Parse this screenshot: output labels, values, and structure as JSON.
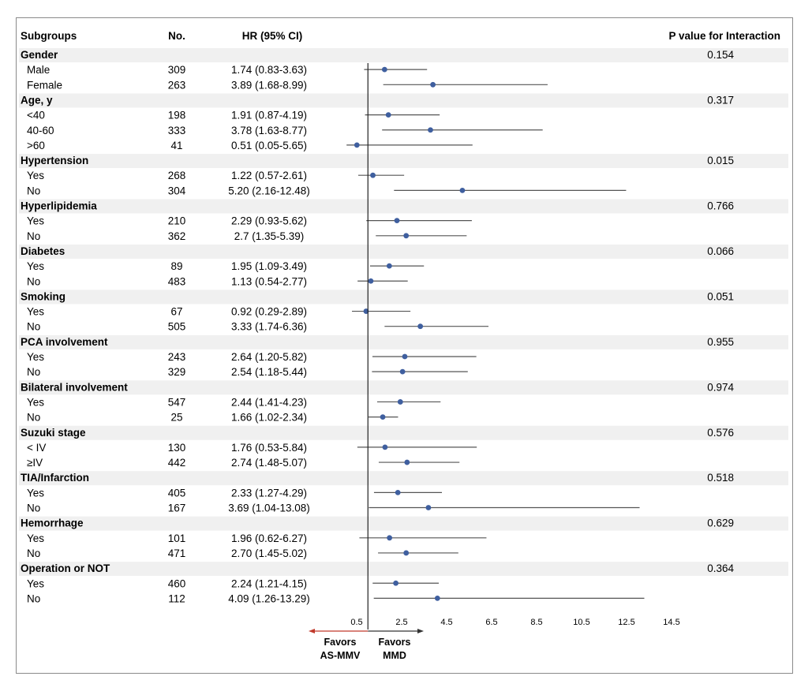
{
  "headers": {
    "subgroups": "Subgroups",
    "no": "No.",
    "hr": "HR (95% CI)",
    "p": "P value for Interaction"
  },
  "chart_data": {
    "type": "forest",
    "x_ticks": [
      0.5,
      2.5,
      4.5,
      6.5,
      8.5,
      10.5,
      12.5,
      14.5
    ],
    "x_tick_labels": [
      "0.5",
      "2.5",
      "4.5",
      "6.5",
      "8.5",
      "10.5",
      "12.5",
      "14.5"
    ],
    "xlim": [
      0.5,
      14.5
    ],
    "reference_line": 1,
    "favors_left": "Favors\nAS-MMV",
    "favors_left_lines": [
      "Favors",
      "AS-MMV"
    ],
    "favors_right_lines": [
      "Favors",
      "MMD"
    ],
    "colors": {
      "point": "#3f5f9f",
      "ci_line": "#555555",
      "band": "#f0f0f0",
      "arrow_left": "#c0392b",
      "arrow_right": "#333333"
    },
    "groups": [
      {
        "name": "Gender",
        "p": "0.154",
        "rows": [
          {
            "label": "Male",
            "n": "309",
            "hr_text": "1.74 (0.83-3.63)",
            "hr": 1.74,
            "lo": 0.83,
            "hi": 3.63
          },
          {
            "label": "Female",
            "n": "263",
            "hr_text": "3.89 (1.68-8.99)",
            "hr": 3.89,
            "lo": 1.68,
            "hi": 8.99
          }
        ]
      },
      {
        "name": "Age, y",
        "p": "0.317",
        "rows": [
          {
            "label": "<40",
            "n": "198",
            "hr_text": "1.91 (0.87-4.19)",
            "hr": 1.91,
            "lo": 0.87,
            "hi": 4.19
          },
          {
            "label": "40-60",
            "n": "333",
            "hr_text": "3.78 (1.63-8.77)",
            "hr": 3.78,
            "lo": 1.63,
            "hi": 8.77
          },
          {
            "label": ">60",
            "n": "41",
            "hr_text": "0.51 (0.05-5.65)",
            "hr": 0.51,
            "lo": 0.05,
            "hi": 5.65
          }
        ]
      },
      {
        "name": "Hypertension",
        "p": "0.015",
        "rows": [
          {
            "label": "Yes",
            "n": "268",
            "hr_text": "1.22 (0.57-2.61)",
            "hr": 1.22,
            "lo": 0.57,
            "hi": 2.61
          },
          {
            "label": "No",
            "n": "304",
            "hr_text": "5.20 (2.16-12.48)",
            "hr": 5.2,
            "lo": 2.16,
            "hi": 12.48
          }
        ]
      },
      {
        "name": "Hyperlipidemia",
        "p": "0.766",
        "rows": [
          {
            "label": "Yes",
            "n": "210",
            "hr_text": "2.29 (0.93-5.62)",
            "hr": 2.29,
            "lo": 0.93,
            "hi": 5.62
          },
          {
            "label": "No",
            "n": "362",
            "hr_text": "2.7 (1.35-5.39)",
            "hr": 2.7,
            "lo": 1.35,
            "hi": 5.39
          }
        ]
      },
      {
        "name": "Diabetes",
        "p": "0.066",
        "rows": [
          {
            "label": "Yes",
            "n": "89",
            "hr_text": "1.95 (1.09-3.49)",
            "hr": 1.95,
            "lo": 1.09,
            "hi": 3.49
          },
          {
            "label": "No",
            "n": "483",
            "hr_text": "1.13 (0.54-2.77)",
            "hr": 1.13,
            "lo": 0.54,
            "hi": 2.77
          }
        ]
      },
      {
        "name": "Smoking",
        "p": "0.051",
        "rows": [
          {
            "label": "Yes",
            "n": "67",
            "hr_text": "0.92 (0.29-2.89)",
            "hr": 0.92,
            "lo": 0.29,
            "hi": 2.89
          },
          {
            "label": "No",
            "n": "505",
            "hr_text": "3.33 (1.74-6.36)",
            "hr": 3.33,
            "lo": 1.74,
            "hi": 6.36
          }
        ]
      },
      {
        "name": "PCA involvement",
        "p": "0.955",
        "rows": [
          {
            "label": "Yes",
            "n": "243",
            "hr_text": "2.64 (1.20-5.82)",
            "hr": 2.64,
            "lo": 1.2,
            "hi": 5.82
          },
          {
            "label": "No",
            "n": "329",
            "hr_text": "2.54 (1.18-5.44)",
            "hr": 2.54,
            "lo": 1.18,
            "hi": 5.44
          }
        ]
      },
      {
        "name": "Bilateral involvement",
        "p": "0.974",
        "rows": [
          {
            "label": "Yes",
            "n": "547",
            "hr_text": "2.44 (1.41-4.23)",
            "hr": 2.44,
            "lo": 1.41,
            "hi": 4.23
          },
          {
            "label": "No",
            "n": "25",
            "hr_text": "1.66 (1.02-2.34)",
            "hr": 1.66,
            "lo": 1.02,
            "hi": 2.34
          }
        ]
      },
      {
        "name": "Suzuki stage",
        "p": "0.576",
        "rows": [
          {
            "label": "< IV",
            "n": "130",
            "hr_text": "1.76 (0.53-5.84)",
            "hr": 1.76,
            "lo": 0.53,
            "hi": 5.84
          },
          {
            "label": "≥IV",
            "n": "442",
            "hr_text": "2.74 (1.48-5.07)",
            "hr": 2.74,
            "lo": 1.48,
            "hi": 5.07
          }
        ]
      },
      {
        "name": "TIA/Infarction",
        "p": "0.518",
        "rows": [
          {
            "label": "Yes",
            "n": "405",
            "hr_text": "2.33 (1.27-4.29)",
            "hr": 2.33,
            "lo": 1.27,
            "hi": 4.29
          },
          {
            "label": "No",
            "n": "167",
            "hr_text": "3.69 (1.04-13.08)",
            "hr": 3.69,
            "lo": 1.04,
            "hi": 13.08
          }
        ]
      },
      {
        "name": "Hemorrhage",
        "p": "0.629",
        "rows": [
          {
            "label": "Yes",
            "n": "101",
            "hr_text": "1.96 (0.62-6.27)",
            "hr": 1.96,
            "lo": 0.62,
            "hi": 6.27
          },
          {
            "label": "No",
            "n": "471",
            "hr_text": "2.70 (1.45-5.02)",
            "hr": 2.7,
            "lo": 1.45,
            "hi": 5.02
          }
        ]
      },
      {
        "name": "Operation or NOT",
        "p": "0.364",
        "rows": [
          {
            "label": "Yes",
            "n": "460",
            "hr_text": "2.24 (1.21-4.15)",
            "hr": 2.24,
            "lo": 1.21,
            "hi": 4.15
          },
          {
            "label": "No",
            "n": "112",
            "hr_text": "4.09 (1.26-13.29)",
            "hr": 4.09,
            "lo": 1.26,
            "hi": 13.29
          }
        ]
      }
    ]
  }
}
